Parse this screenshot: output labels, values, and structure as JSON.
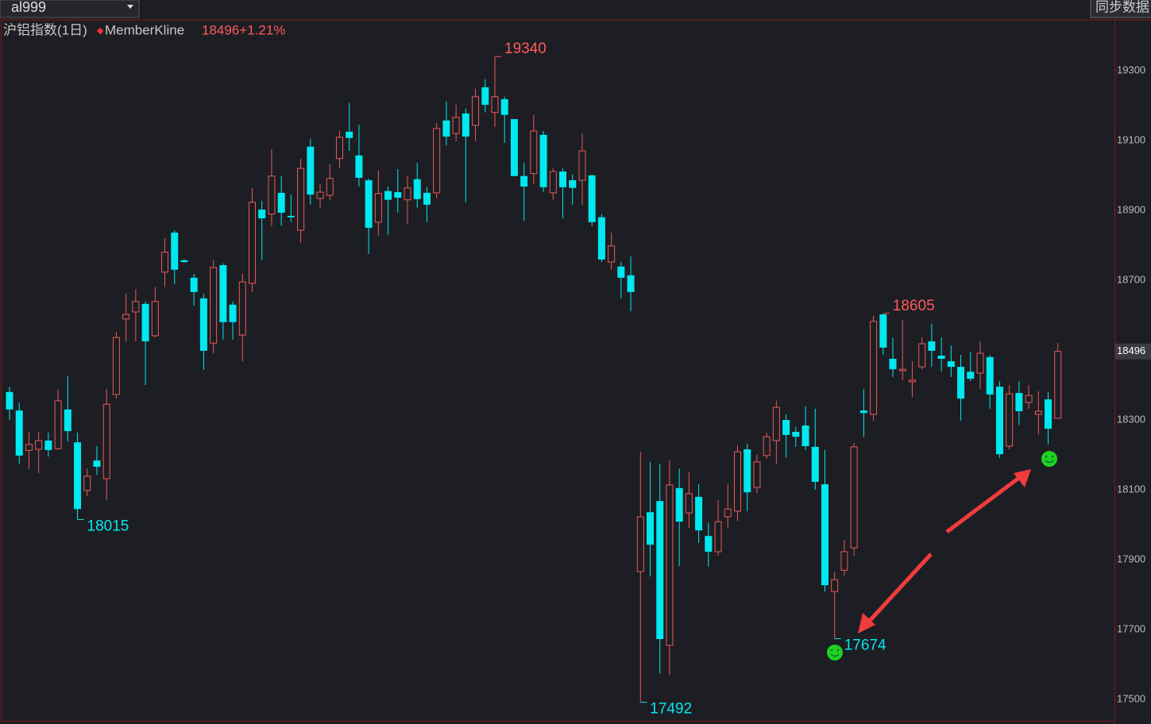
{
  "toolbar": {
    "symbol": "al999",
    "button": "同步数据"
  },
  "chart_data": {
    "type": "candlestick",
    "title": "沪铝指数(1日)",
    "indicator": "MemberKline",
    "change": "+1.21%",
    "up_color": "#e85a5a",
    "down_color": "#00e8f0",
    "ylim": [
      17439,
      19445
    ],
    "yticks": [
      17500,
      17700,
      17900,
      18100,
      18300,
      18700,
      18900,
      19100,
      19300
    ],
    "open": [
      18380,
      18327,
      18213,
      18216,
      18241,
      18218,
      18330,
      18236,
      18098,
      18184,
      18132,
      18373,
      18589,
      18609,
      18632,
      18541,
      18723,
      18836,
      18757,
      18707,
      18648,
      18520,
      18743,
      18630,
      18543,
      18691,
      18902,
      18889,
      18950,
      18884,
      18843,
      19082,
      18934,
      18943,
      19048,
      19125,
      19057,
      18986,
      18866,
      18955,
      18952,
      18930,
      18989,
      18950,
      18950,
      19157,
      19120,
      19177,
      19143,
      19252,
      19180,
      19218,
      19161,
      18998,
      19005,
      19116,
      18950,
      19011,
      18986,
      18986,
      19000,
      18880,
      18752,
      18739,
      18714,
      17866,
      18036,
      18068,
      17655,
      18105,
      18034,
      18080,
      17968,
      17923,
      18023,
      18039,
      18216,
      18107,
      18198,
      18241,
      18300,
      18266,
      18284,
      18223,
      18116,
      17809,
      17870,
      17934,
      18327,
      18316,
      18602,
      18475,
      18441,
      18409,
      18452,
      18525,
      18484,
      18468,
      18452,
      18438,
      18434,
      18480,
      18395,
      18225,
      18377,
      18350,
      18316,
      18359,
      18305
    ],
    "high": [
      18395,
      18350,
      18265,
      18266,
      18264,
      18388,
      18425,
      18264,
      18161,
      18225,
      18389,
      18552,
      18661,
      18673,
      18639,
      18680,
      18820,
      18843,
      18760,
      18718,
      18661,
      18757,
      18748,
      18639,
      18718,
      18964,
      18927,
      19075,
      18998,
      18945,
      19048,
      19105,
      18975,
      19032,
      19127,
      19207,
      19145,
      18991,
      19014,
      18968,
      19018,
      18998,
      19036,
      18966,
      19150,
      19211,
      19202,
      19191,
      19248,
      19275,
      19340,
      19225,
      19161,
      19036,
      19173,
      19127,
      19020,
      19020,
      19002,
      19120,
      19002,
      18889,
      18836,
      18752,
      18768,
      18209,
      18180,
      18175,
      18184,
      18161,
      18150,
      18116,
      18007,
      18070,
      18116,
      18227,
      18232,
      18200,
      18264,
      18355,
      18316,
      18280,
      18339,
      18332,
      18214,
      17866,
      17957,
      18234,
      18389,
      18598,
      18605,
      18536,
      18586,
      18468,
      18536,
      18575,
      18536,
      18513,
      18486,
      18495,
      18525,
      18486,
      18411,
      18400,
      18411,
      18400,
      18382,
      18380,
      18520
    ],
    "low": [
      18300,
      18175,
      18160,
      18148,
      18195,
      18214,
      18239,
      18015,
      18082,
      18143,
      18070,
      18361,
      18525,
      18525,
      18400,
      18536,
      18680,
      18689,
      18750,
      18627,
      18443,
      18491,
      18530,
      18530,
      18468,
      18666,
      18757,
      18855,
      18855,
      18866,
      18807,
      18916,
      18907,
      18930,
      19020,
      19070,
      18968,
      18775,
      18827,
      18830,
      18893,
      18861,
      18907,
      18866,
      18934,
      19086,
      19098,
      18923,
      19098,
      19180,
      19139,
      19093,
      18998,
      18870,
      18975,
      18952,
      18930,
      18877,
      18916,
      18916,
      18855,
      18752,
      18730,
      18648,
      18611,
      17492,
      17852,
      17575,
      17570,
      17882,
      17991,
      17948,
      17880,
      17911,
      17991,
      18011,
      18039,
      18091,
      18189,
      18173,
      18193,
      18223,
      18214,
      18100,
      17809,
      17674,
      17855,
      17911,
      18252,
      18298,
      18486,
      18423,
      18414,
      18366,
      18445,
      18452,
      18439,
      18423,
      18298,
      18411,
      18389,
      18332,
      18191,
      18216,
      18286,
      18332,
      18259,
      18230,
      18305
    ],
    "close": [
      18330,
      18198,
      18230,
      18241,
      18214,
      18355,
      18268,
      18045,
      18139,
      18166,
      18345,
      18536,
      18602,
      18639,
      18525,
      18639,
      18780,
      18730,
      18752,
      18666,
      18498,
      18736,
      18580,
      18580,
      18695,
      18923,
      18877,
      18998,
      18893,
      18880,
      19020,
      18945,
      18952,
      18991,
      19109,
      19107,
      18993,
      18850,
      18948,
      18930,
      18936,
      18964,
      18932,
      18916,
      19134,
      19111,
      19166,
      19111,
      19225,
      19202,
      19225,
      19173,
      18998,
      18968,
      19127,
      18966,
      19011,
      18966,
      18964,
      19070,
      18866,
      18759,
      18798,
      18707,
      18666,
      18023,
      17943,
      17673,
      18114,
      18009,
      18089,
      17984,
      17923,
      18009,
      18045,
      18209,
      18093,
      18180,
      18252,
      18336,
      18257,
      18252,
      18225,
      18123,
      17827,
      17843,
      17923,
      18223,
      18320,
      18582,
      18507,
      18445,
      18445,
      18414,
      18518,
      18498,
      18475,
      18452,
      18361,
      18418,
      18491,
      18373,
      18202,
      18375,
      18325,
      18370,
      18325,
      18275,
      18496
    ]
  }
}
